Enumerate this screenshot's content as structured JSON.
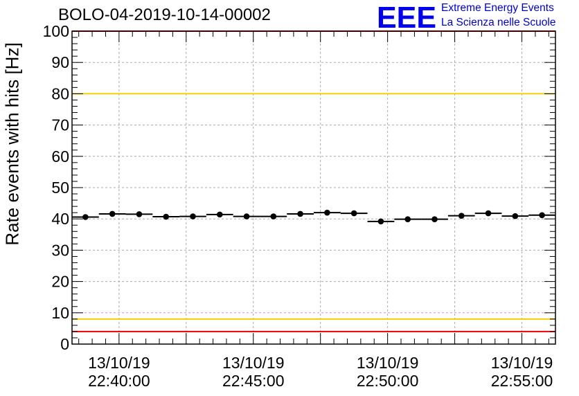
{
  "header": {
    "title": "BOLO-04-2019-10-14-00002",
    "logo_text": "EEE",
    "logo_line1": "Extreme Energy Events",
    "logo_line2": "La Scienza nelle Scuole"
  },
  "colors": {
    "logo": "#0000ee",
    "logo_text": "#0000cc",
    "limit_red": "#ee0000",
    "limit_yellow": "#f0d000",
    "points": "#000000",
    "grid": "#aaaaaa"
  },
  "chart_data": {
    "type": "scatter",
    "ylabel": "Rate events with hits [Hz]",
    "xlabel": "",
    "x_axis_type": "time",
    "x_range": [
      "2019-10-13 22:38:15",
      "2019-10-13 22:56:15"
    ],
    "ylim": [
      0,
      100
    ],
    "y_ticks": [
      0,
      10,
      20,
      30,
      40,
      50,
      60,
      70,
      80,
      90,
      100
    ],
    "x_tick_labels": [
      {
        "time": "2019-10-13 22:40:00",
        "date": "13/10/19",
        "clock": "22:40:00"
      },
      {
        "time": "2019-10-13 22:45:00",
        "date": "13/10/19",
        "clock": "22:45:00"
      },
      {
        "time": "2019-10-13 22:50:00",
        "date": "13/10/19",
        "clock": "22:50:00"
      },
      {
        "time": "2019-10-13 22:55:00",
        "date": "13/10/19",
        "clock": "22:55:00"
      }
    ],
    "grid": true,
    "reference_lines": [
      {
        "y": 100,
        "color": "red"
      },
      {
        "y": 80,
        "color": "yellow"
      },
      {
        "y": 8,
        "color": "yellow"
      },
      {
        "y": 4,
        "color": "red"
      }
    ],
    "bin_width_seconds": 60,
    "points": [
      {
        "x": "2019-10-13 22:38:45",
        "y": 40.6
      },
      {
        "x": "2019-10-13 22:39:45",
        "y": 41.6
      },
      {
        "x": "2019-10-13 22:40:45",
        "y": 41.5
      },
      {
        "x": "2019-10-13 22:41:45",
        "y": 40.7
      },
      {
        "x": "2019-10-13 22:42:45",
        "y": 40.8
      },
      {
        "x": "2019-10-13 22:43:45",
        "y": 41.4
      },
      {
        "x": "2019-10-13 22:44:45",
        "y": 40.8
      },
      {
        "x": "2019-10-13 22:45:45",
        "y": 40.8
      },
      {
        "x": "2019-10-13 22:46:45",
        "y": 41.6
      },
      {
        "x": "2019-10-13 22:47:45",
        "y": 42.0
      },
      {
        "x": "2019-10-13 22:48:45",
        "y": 41.8
      },
      {
        "x": "2019-10-13 22:49:45",
        "y": 39.2
      },
      {
        "x": "2019-10-13 22:50:45",
        "y": 39.9
      },
      {
        "x": "2019-10-13 22:51:45",
        "y": 39.9
      },
      {
        "x": "2019-10-13 22:52:45",
        "y": 41.0
      },
      {
        "x": "2019-10-13 22:53:45",
        "y": 41.8
      },
      {
        "x": "2019-10-13 22:54:45",
        "y": 40.9
      },
      {
        "x": "2019-10-13 22:55:45",
        "y": 41.2
      }
    ]
  }
}
